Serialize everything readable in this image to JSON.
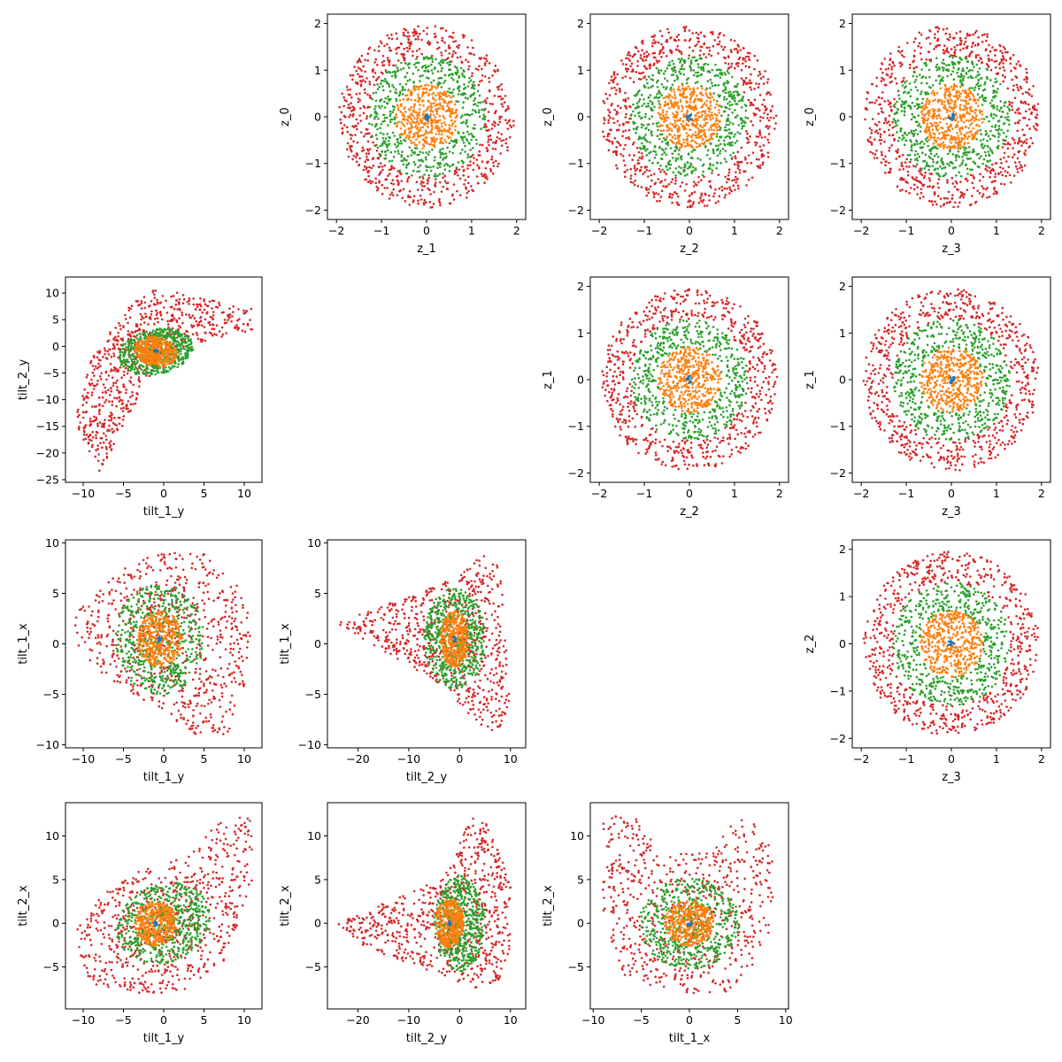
{
  "colors": {
    "outer": "#d62728",
    "mid": "#2ca02c",
    "inner": "#ff7f0e",
    "core": "#1f77b4"
  },
  "chart_data": [
    {
      "type": "scatter",
      "id": "z1_z0",
      "xlabel": "z_1",
      "ylabel": "z_0",
      "xlim": [
        -2.2,
        2.2
      ],
      "ylim": [
        -2.2,
        2.2
      ],
      "xticks": [
        -2,
        -1,
        0,
        1,
        2
      ],
      "yticks": [
        -2,
        -1,
        0,
        1,
        2
      ],
      "series": [
        {
          "color": "outer",
          "pattern": "ring",
          "center": [
            0,
            0
          ],
          "r_range": [
            1.3,
            1.95
          ],
          "n": 650
        },
        {
          "color": "mid",
          "pattern": "ring",
          "center": [
            0,
            0
          ],
          "r_range": [
            0.7,
            1.3
          ],
          "n": 520
        },
        {
          "color": "inner",
          "pattern": "disk",
          "center": [
            0,
            0
          ],
          "radius": 0.7,
          "n": 420
        },
        {
          "color": "core",
          "pattern": "disk",
          "center": [
            0,
            0
          ],
          "radius": 0.08,
          "n": 12
        }
      ]
    },
    {
      "type": "scatter",
      "id": "z2_z0",
      "xlabel": "z_2",
      "ylabel": "z_0",
      "xlim": [
        -2.2,
        2.2
      ],
      "ylim": [
        -2.2,
        2.2
      ],
      "xticks": [
        -2,
        -1,
        0,
        1,
        2
      ],
      "yticks": [
        -2,
        -1,
        0,
        1,
        2
      ],
      "series": [
        {
          "color": "outer",
          "pattern": "ring",
          "center": [
            0,
            0
          ],
          "r_range": [
            1.3,
            1.95
          ],
          "n": 650
        },
        {
          "color": "mid",
          "pattern": "ring",
          "center": [
            0,
            0
          ],
          "r_range": [
            0.7,
            1.3
          ],
          "n": 520
        },
        {
          "color": "inner",
          "pattern": "disk",
          "center": [
            0,
            0
          ],
          "radius": 0.7,
          "n": 420
        },
        {
          "color": "core",
          "pattern": "disk",
          "center": [
            0,
            0
          ],
          "radius": 0.08,
          "n": 12
        }
      ]
    },
    {
      "type": "scatter",
      "id": "z3_z0",
      "xlabel": "z_3",
      "ylabel": "z_0",
      "xlim": [
        -2.2,
        2.2
      ],
      "ylim": [
        -2.2,
        2.2
      ],
      "xticks": [
        -2,
        -1,
        0,
        1,
        2
      ],
      "yticks": [
        -2,
        -1,
        0,
        1,
        2
      ],
      "series": [
        {
          "color": "outer",
          "pattern": "ring",
          "center": [
            0,
            0
          ],
          "r_range": [
            1.3,
            1.95
          ],
          "n": 650
        },
        {
          "color": "mid",
          "pattern": "ring",
          "center": [
            0,
            0
          ],
          "r_range": [
            0.7,
            1.3
          ],
          "n": 520
        },
        {
          "color": "inner",
          "pattern": "disk",
          "center": [
            0,
            0
          ],
          "radius": 0.7,
          "n": 420
        },
        {
          "color": "core",
          "pattern": "disk",
          "center": [
            0,
            0
          ],
          "radius": 0.08,
          "n": 12
        }
      ]
    },
    {
      "type": "scatter",
      "id": "tilt1y_tilt2y",
      "xlabel": "tilt_1_y",
      "ylabel": "tilt_2_y",
      "xlim": [
        -12.2,
        12.2
      ],
      "ylim": [
        -25.5,
        13
      ],
      "xticks": [
        -10,
        -5,
        0,
        5,
        10
      ],
      "yticks": [
        -25,
        -20,
        -15,
        -10,
        -5,
        0,
        5,
        10
      ],
      "series": [
        {
          "color": "outer",
          "pattern": "polygon",
          "vertices": [
            [
              -11,
              -14
            ],
            [
              -8,
              -24
            ],
            [
              -4,
              -12
            ],
            [
              0,
              -2
            ],
            [
              5,
              1
            ],
            [
              11,
              3
            ],
            [
              11,
              7
            ],
            [
              5,
              9
            ],
            [
              -1,
              11
            ],
            [
              -4,
              8
            ],
            [
              -9,
              -2
            ]
          ],
          "n": 700
        },
        {
          "color": "mid",
          "pattern": "ellipse",
          "center": [
            -1,
            -1
          ],
          "radii": [
            5,
            4
          ],
          "angle": 35,
          "n": 550
        },
        {
          "color": "inner",
          "pattern": "ellipse",
          "center": [
            -1,
            -1
          ],
          "radii": [
            2.5,
            3
          ],
          "angle": 35,
          "n": 380
        },
        {
          "color": "core",
          "pattern": "disk",
          "center": [
            -1,
            -1
          ],
          "radius": 0.4,
          "n": 10
        }
      ]
    },
    {
      "type": "scatter",
      "id": "z2_z1",
      "xlabel": "z_2",
      "ylabel": "z_1",
      "xlim": [
        -2.2,
        2.2
      ],
      "ylim": [
        -2.2,
        2.2
      ],
      "xticks": [
        -2,
        -1,
        0,
        1,
        2
      ],
      "yticks": [
        -2,
        -1,
        0,
        1,
        2
      ],
      "series": [
        {
          "color": "outer",
          "pattern": "ring",
          "center": [
            0,
            0
          ],
          "r_range": [
            1.3,
            1.95
          ],
          "n": 650
        },
        {
          "color": "mid",
          "pattern": "ring",
          "center": [
            0,
            0
          ],
          "r_range": [
            0.7,
            1.3
          ],
          "n": 520
        },
        {
          "color": "inner",
          "pattern": "disk",
          "center": [
            0,
            0
          ],
          "radius": 0.7,
          "n": 420
        },
        {
          "color": "core",
          "pattern": "disk",
          "center": [
            0,
            0
          ],
          "radius": 0.08,
          "n": 12
        }
      ]
    },
    {
      "type": "scatter",
      "id": "z3_z1",
      "xlabel": "z_3",
      "ylabel": "z_1",
      "xlim": [
        -2.2,
        2.2
      ],
      "ylim": [
        -2.2,
        2.2
      ],
      "xticks": [
        -2,
        -1,
        0,
        1,
        2
      ],
      "yticks": [
        -2,
        -1,
        0,
        1,
        2
      ],
      "series": [
        {
          "color": "outer",
          "pattern": "ring",
          "center": [
            0,
            0
          ],
          "r_range": [
            1.3,
            1.95
          ],
          "n": 650
        },
        {
          "color": "mid",
          "pattern": "ring",
          "center": [
            0,
            0
          ],
          "r_range": [
            0.7,
            1.3
          ],
          "n": 520
        },
        {
          "color": "inner",
          "pattern": "disk",
          "center": [
            0,
            0
          ],
          "radius": 0.7,
          "n": 420
        },
        {
          "color": "core",
          "pattern": "disk",
          "center": [
            0,
            0
          ],
          "radius": 0.08,
          "n": 12
        }
      ]
    },
    {
      "type": "scatter",
      "id": "tilt1y_tilt1x",
      "xlabel": "tilt_1_y",
      "ylabel": "tilt_1_x",
      "xlim": [
        -12.2,
        12.2
      ],
      "ylim": [
        -10.3,
        10.3
      ],
      "xticks": [
        -10,
        -5,
        0,
        5,
        10
      ],
      "yticks": [
        -10,
        -5,
        0,
        5,
        10
      ],
      "series": [
        {
          "color": "outer",
          "pattern": "polygon",
          "vertices": [
            [
              -11,
              3
            ],
            [
              -6,
              7
            ],
            [
              -1,
              9
            ],
            [
              5,
              9
            ],
            [
              9,
              6
            ],
            [
              11,
              2
            ],
            [
              10,
              -4
            ],
            [
              8,
              -9
            ],
            [
              4,
              -9
            ],
            [
              -2,
              -6
            ],
            [
              -8,
              -3
            ],
            [
              -11,
              0
            ]
          ],
          "n": 700
        },
        {
          "color": "mid",
          "pattern": "disk",
          "center": [
            -0.5,
            0.5
          ],
          "radius": 5.5,
          "n": 550
        },
        {
          "color": "inner",
          "pattern": "disk",
          "center": [
            -0.5,
            0.5
          ],
          "radius": 2.8,
          "n": 380
        },
        {
          "color": "core",
          "pattern": "disk",
          "center": [
            -0.5,
            0.5
          ],
          "radius": 0.3,
          "n": 10
        }
      ]
    },
    {
      "type": "scatter",
      "id": "tilt2y_tilt1x",
      "xlabel": "tilt_2_y",
      "ylabel": "tilt_1_x",
      "xlim": [
        -26,
        13
      ],
      "ylim": [
        -10.3,
        10.3
      ],
      "xticks": [
        -20,
        -10,
        0,
        10
      ],
      "yticks": [
        -10,
        -5,
        0,
        5,
        10
      ],
      "series": [
        {
          "color": "outer",
          "pattern": "polygon",
          "vertices": [
            [
              -24,
              2
            ],
            [
              -10,
              5
            ],
            [
              0,
              7
            ],
            [
              5,
              9
            ],
            [
              8,
              8
            ],
            [
              10,
              -6
            ],
            [
              8,
              -9
            ],
            [
              4,
              -8
            ],
            [
              -4,
              -4
            ],
            [
              -14,
              -1
            ]
          ],
          "n": 700
        },
        {
          "color": "mid",
          "pattern": "ellipse",
          "center": [
            -1,
            0.5
          ],
          "radii": [
            6,
            5
          ],
          "angle": 0,
          "n": 550
        },
        {
          "color": "inner",
          "pattern": "disk",
          "center": [
            -1,
            0.5
          ],
          "radius": 2.8,
          "n": 380
        },
        {
          "color": "core",
          "pattern": "disk",
          "center": [
            -1,
            0.5
          ],
          "radius": 0.3,
          "n": 10
        }
      ]
    },
    {
      "type": "scatter",
      "id": "z3_z2",
      "xlabel": "z_3",
      "ylabel": "z_2",
      "xlim": [
        -2.2,
        2.2
      ],
      "ylim": [
        -2.2,
        2.2
      ],
      "xticks": [
        -2,
        -1,
        0,
        1,
        2
      ],
      "yticks": [
        -2,
        -1,
        0,
        1,
        2
      ],
      "series": [
        {
          "color": "outer",
          "pattern": "ring",
          "center": [
            0,
            0
          ],
          "r_range": [
            1.3,
            1.95
          ],
          "n": 650
        },
        {
          "color": "mid",
          "pattern": "ring",
          "center": [
            0,
            0
          ],
          "r_range": [
            0.7,
            1.3
          ],
          "n": 520
        },
        {
          "color": "inner",
          "pattern": "disk",
          "center": [
            0,
            0
          ],
          "radius": 0.7,
          "n": 420
        },
        {
          "color": "core",
          "pattern": "disk",
          "center": [
            0,
            0
          ],
          "radius": 0.08,
          "n": 12
        }
      ]
    },
    {
      "type": "scatter",
      "id": "tilt1y_tilt2x",
      "xlabel": "tilt_1_y",
      "ylabel": "tilt_2_x",
      "xlim": [
        -12.2,
        12.2
      ],
      "ylim": [
        -9.8,
        13.8
      ],
      "xticks": [
        -10,
        -5,
        0,
        5,
        10
      ],
      "yticks": [
        -5,
        0,
        5,
        10
      ],
      "series": [
        {
          "color": "outer",
          "pattern": "polygon",
          "vertices": [
            [
              -11,
              -1
            ],
            [
              -8,
              3
            ],
            [
              -3,
              6
            ],
            [
              3,
              8
            ],
            [
              8,
              12.5
            ],
            [
              11,
              12
            ],
            [
              11,
              5
            ],
            [
              8,
              -4
            ],
            [
              2,
              -8
            ],
            [
              -3,
              -8
            ],
            [
              -9,
              -7
            ],
            [
              -11,
              -4
            ]
          ],
          "n": 700
        },
        {
          "color": "mid",
          "pattern": "ellipse",
          "center": [
            0,
            0
          ],
          "radii": [
            6,
            4.5
          ],
          "angle": 20,
          "n": 550
        },
        {
          "color": "inner",
          "pattern": "disk",
          "center": [
            -1,
            0
          ],
          "radius": 2.6,
          "n": 380
        },
        {
          "color": "core",
          "pattern": "disk",
          "center": [
            -1,
            0
          ],
          "radius": 0.3,
          "n": 10
        }
      ]
    },
    {
      "type": "scatter",
      "id": "tilt2y_tilt2x",
      "xlabel": "tilt_2_y",
      "ylabel": "tilt_2_x",
      "xlim": [
        -26,
        13
      ],
      "ylim": [
        -9.8,
        13.8
      ],
      "xticks": [
        -20,
        -10,
        0,
        10
      ],
      "yticks": [
        -5,
        0,
        5,
        10
      ],
      "series": [
        {
          "color": "outer",
          "pattern": "polygon",
          "vertices": [
            [
              -24,
              0
            ],
            [
              -12,
              3
            ],
            [
              -2,
              6
            ],
            [
              2,
              12.5
            ],
            [
              5,
              12
            ],
            [
              10,
              5
            ],
            [
              10,
              -3
            ],
            [
              7,
              -8
            ],
            [
              0,
              -7
            ],
            [
              -8,
              -5
            ],
            [
              -18,
              -3
            ]
          ],
          "n": 700
        },
        {
          "color": "mid",
          "pattern": "ellipse",
          "center": [
            0,
            0
          ],
          "radii": [
            5,
            5.5
          ],
          "angle": 0,
          "n": 550
        },
        {
          "color": "inner",
          "pattern": "disk",
          "center": [
            -2,
            0
          ],
          "radius": 2.8,
          "n": 380
        },
        {
          "color": "core",
          "pattern": "disk",
          "center": [
            -2,
            0
          ],
          "radius": 0.3,
          "n": 10
        }
      ]
    },
    {
      "type": "scatter",
      "id": "tilt1x_tilt2x",
      "xlabel": "tilt_1_x",
      "ylabel": "tilt_2_x",
      "xlim": [
        -10.3,
        10.3
      ],
      "ylim": [
        -9.8,
        13.8
      ],
      "xticks": [
        -10,
        -5,
        0,
        5,
        10
      ],
      "yticks": [
        -5,
        0,
        5,
        10
      ],
      "series": [
        {
          "color": "outer",
          "pattern": "polygon",
          "vertices": [
            [
              -9,
              13
            ],
            [
              -5,
              12
            ],
            [
              -3,
              8
            ],
            [
              2,
              8
            ],
            [
              5,
              12
            ],
            [
              8,
              11
            ],
            [
              9,
              5
            ],
            [
              8,
              -3
            ],
            [
              4,
              -8
            ],
            [
              -2,
              -8
            ],
            [
              -7,
              -6
            ],
            [
              -9,
              0
            ]
          ],
          "n": 650
        },
        {
          "color": "mid",
          "pattern": "disk",
          "center": [
            0,
            0
          ],
          "radius": 5.2,
          "n": 550
        },
        {
          "color": "inner",
          "pattern": "disk",
          "center": [
            0,
            0
          ],
          "radius": 2.6,
          "n": 380
        },
        {
          "color": "core",
          "pattern": "disk",
          "center": [
            0,
            0
          ],
          "radius": 0.3,
          "n": 10
        }
      ]
    }
  ]
}
